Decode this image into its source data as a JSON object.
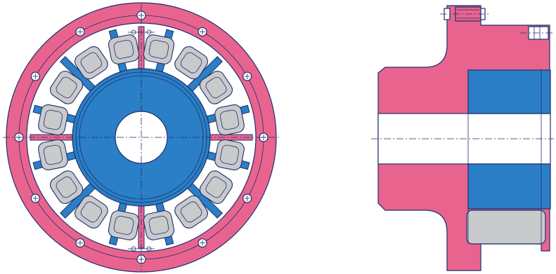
{
  "colors": {
    "flange": "#e8648f",
    "hub": "#2a7fc6",
    "element": "#c9cacc",
    "line": "#1f2f6b",
    "background": "#ffffff"
  },
  "icons": [
    "bolt-hole-icon",
    "center-mark-icon",
    "hex-bolt-icon"
  ],
  "front_view": {
    "bolt_holes": 12,
    "elastic_elements": 16,
    "separators": 12
  }
}
